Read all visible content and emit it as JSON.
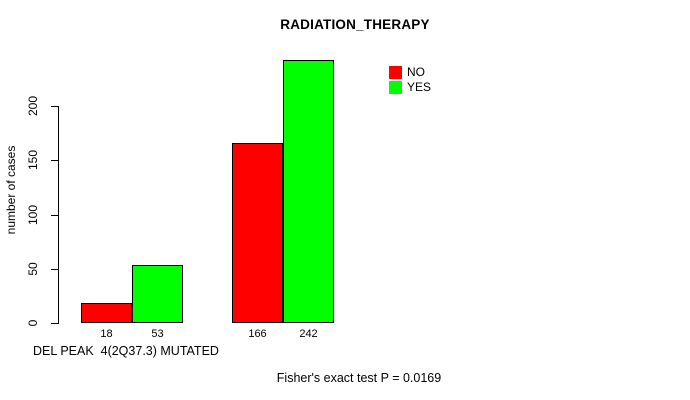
{
  "chart_data": {
    "type": "bar",
    "title": "RADIATION_THERAPY",
    "ylabel": "number of cases",
    "xlabel": "DEL PEAK  4(2Q37.3) MUTATED",
    "annotation": "Fisher's exact test P = 0.0169",
    "legend_position": "top-right",
    "grid": false,
    "background": "#ffffff",
    "bar_border_color": "#000000",
    "yticks": [
      0,
      50,
      100,
      150,
      200
    ],
    "ylim": [
      0,
      242
    ],
    "series": [
      {
        "name": "NO",
        "color": "#ff0000",
        "values": [
          18,
          166
        ]
      },
      {
        "name": "YES",
        "color": "#00ff00",
        "values": [
          53,
          242
        ]
      }
    ],
    "groups": [
      {
        "bars": [
          {
            "series": "NO",
            "value": 18,
            "label": "18"
          },
          {
            "series": "YES",
            "value": 53,
            "label": "53"
          }
        ]
      },
      {
        "bars": [
          {
            "series": "NO",
            "value": 166,
            "label": "166"
          },
          {
            "series": "YES",
            "value": 242,
            "label": "242"
          }
        ]
      }
    ]
  }
}
